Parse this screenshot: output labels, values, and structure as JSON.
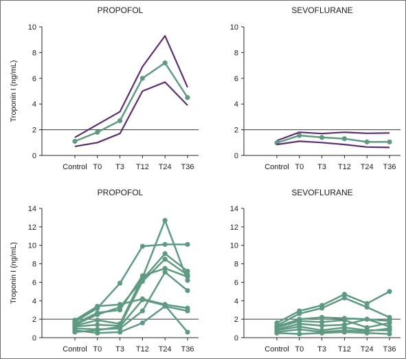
{
  "chart_data": [
    {
      "type": "line",
      "title": "PROPOFOL",
      "ylabel": "Troponin I (ng/mL)",
      "xlabel": "",
      "categories": [
        "Control",
        "T0",
        "T3",
        "T12",
        "T24",
        "T36"
      ],
      "ylim": [
        0,
        10
      ],
      "yticks": [
        0,
        2,
        4,
        6,
        8,
        10
      ],
      "reference_line": 2,
      "series": [
        {
          "role": "upper",
          "color": "#5b2c6f",
          "markers": false,
          "values": [
            1.4,
            2.4,
            3.4,
            6.9,
            9.3,
            5.3
          ]
        },
        {
          "role": "mean",
          "color": "#5e9a82",
          "markers": true,
          "values": [
            1.1,
            1.8,
            2.7,
            6.0,
            7.2,
            4.5
          ]
        },
        {
          "role": "lower",
          "color": "#5b2c6f",
          "markers": false,
          "values": [
            0.7,
            1.0,
            1.7,
            5.0,
            5.7,
            3.9
          ]
        }
      ]
    },
    {
      "type": "line",
      "title": "SEVOFLURANE",
      "ylabel": "",
      "xlabel": "",
      "categories": [
        "Control",
        "T0",
        "T3",
        "T12",
        "T24",
        "T36"
      ],
      "ylim": [
        0,
        10
      ],
      "yticks": [
        0,
        2,
        4,
        6,
        8,
        10
      ],
      "reference_line": 2,
      "series": [
        {
          "role": "upper",
          "color": "#5b2c6f",
          "markers": false,
          "values": [
            1.15,
            1.8,
            1.7,
            1.8,
            1.72,
            1.75
          ]
        },
        {
          "role": "mean",
          "color": "#5e9a82",
          "markers": true,
          "values": [
            0.98,
            1.55,
            1.4,
            1.3,
            1.05,
            1.05
          ]
        },
        {
          "role": "lower",
          "color": "#5b2c6f",
          "markers": false,
          "values": [
            0.85,
            1.1,
            1.0,
            0.85,
            0.65,
            0.62
          ]
        }
      ]
    },
    {
      "type": "line",
      "title": "PROPOFOL",
      "ylabel": "Troponin I (ng/mL)",
      "xlabel": "",
      "categories": [
        "Control",
        "T0",
        "T3",
        "T12",
        "T24",
        "T36"
      ],
      "ylim": [
        0,
        14
      ],
      "yticks": [
        0,
        2,
        4,
        6,
        8,
        10,
        12,
        14
      ],
      "reference_line": 2,
      "series": [
        {
          "color": "#5e9a82",
          "markers": true,
          "values": [
            1.9,
            3.4,
            3.6,
            4.2,
            3.6,
            3.2
          ]
        },
        {
          "color": "#5e9a82",
          "markers": true,
          "values": [
            1.7,
            3.2,
            5.9,
            9.9,
            10.1,
            10.1
          ]
        },
        {
          "color": "#5e9a82",
          "markers": true,
          "values": [
            1.5,
            2.7,
            3.0,
            6.7,
            7.5,
            6.6
          ]
        },
        {
          "color": "#5e9a82",
          "markers": true,
          "values": [
            1.4,
            2.5,
            3.3,
            6.3,
            9.1,
            7.2
          ]
        },
        {
          "color": "#5e9a82",
          "markers": true,
          "values": [
            1.3,
            1.9,
            1.5,
            6.5,
            12.7,
            6.2
          ]
        },
        {
          "color": "#5e9a82",
          "markers": true,
          "values": [
            1.2,
            1.4,
            1.3,
            6.1,
            8.5,
            6.8
          ]
        },
        {
          "color": "#5e9a82",
          "markers": true,
          "values": [
            1.0,
            0.9,
            1.0,
            2.9,
            7.1,
            5.1
          ]
        },
        {
          "color": "#5e9a82",
          "markers": true,
          "values": [
            0.8,
            0.5,
            0.6,
            1.6,
            3.4,
            2.9
          ]
        },
        {
          "color": "#5e9a82",
          "markers": true,
          "values": [
            0.6,
            0.8,
            1.2,
            4.1,
            3.5,
            0.6
          ]
        }
      ]
    },
    {
      "type": "line",
      "title": "SEVOFLURANE",
      "ylabel": "",
      "xlabel": "",
      "categories": [
        "Control",
        "T0",
        "T3",
        "T12",
        "T24",
        "T36"
      ],
      "ylim": [
        0,
        14
      ],
      "yticks": [
        0,
        2,
        4,
        6,
        8,
        10,
        12,
        14
      ],
      "reference_line": 2,
      "series": [
        {
          "color": "#5e9a82",
          "markers": true,
          "values": [
            1.6,
            2.9,
            3.5,
            4.7,
            3.7,
            5.0
          ]
        },
        {
          "color": "#5e9a82",
          "markers": true,
          "values": [
            1.3,
            2.6,
            3.2,
            4.3,
            3.3,
            2.2
          ]
        },
        {
          "color": "#5e9a82",
          "markers": true,
          "values": [
            1.2,
            2.0,
            2.2,
            2.1,
            2.0,
            1.8
          ]
        },
        {
          "color": "#5e9a82",
          "markers": true,
          "values": [
            1.1,
            1.8,
            1.7,
            1.9,
            1.1,
            1.6
          ]
        },
        {
          "color": "#5e9a82",
          "markers": true,
          "values": [
            0.9,
            1.5,
            1.3,
            1.4,
            2.0,
            1.2
          ]
        },
        {
          "color": "#5e9a82",
          "markers": true,
          "values": [
            0.8,
            1.2,
            0.8,
            1.1,
            0.8,
            0.8
          ]
        },
        {
          "color": "#5e9a82",
          "markers": true,
          "values": [
            0.6,
            0.9,
            0.6,
            0.8,
            0.7,
            1.0
          ]
        },
        {
          "color": "#5e9a82",
          "markers": true,
          "values": [
            0.5,
            0.4,
            0.5,
            0.6,
            0.5,
            0.4
          ]
        }
      ]
    }
  ]
}
